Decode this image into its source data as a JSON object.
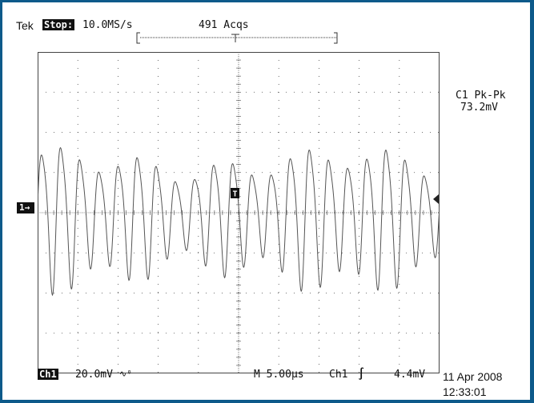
{
  "header": {
    "brand": "Tek",
    "state": "Stop:",
    "sample_rate": "10.0MS/s",
    "acquisitions": "491 Acqs"
  },
  "channel_marker": "1",
  "trigger_marker": "T",
  "measurement": {
    "label": "C1 Pk-Pk",
    "value": "73.2mV"
  },
  "footer": {
    "channel": "Ch1",
    "volts_per_div": "20.0mV",
    "bandwidth_symbol": "∿⁰",
    "timebase": "M 5.00µs",
    "trigger_source": "Ch1",
    "trigger_slope": "∫",
    "trigger_level": "4.4mV",
    "date": "11 Apr 2008",
    "time": "12:33:01"
  },
  "colors": {
    "border": "#0d5a8a",
    "trace": "#555555",
    "grid": "#444444"
  },
  "waveform": {
    "cycles": 21,
    "amplitude_divisions": 1.8
  }
}
